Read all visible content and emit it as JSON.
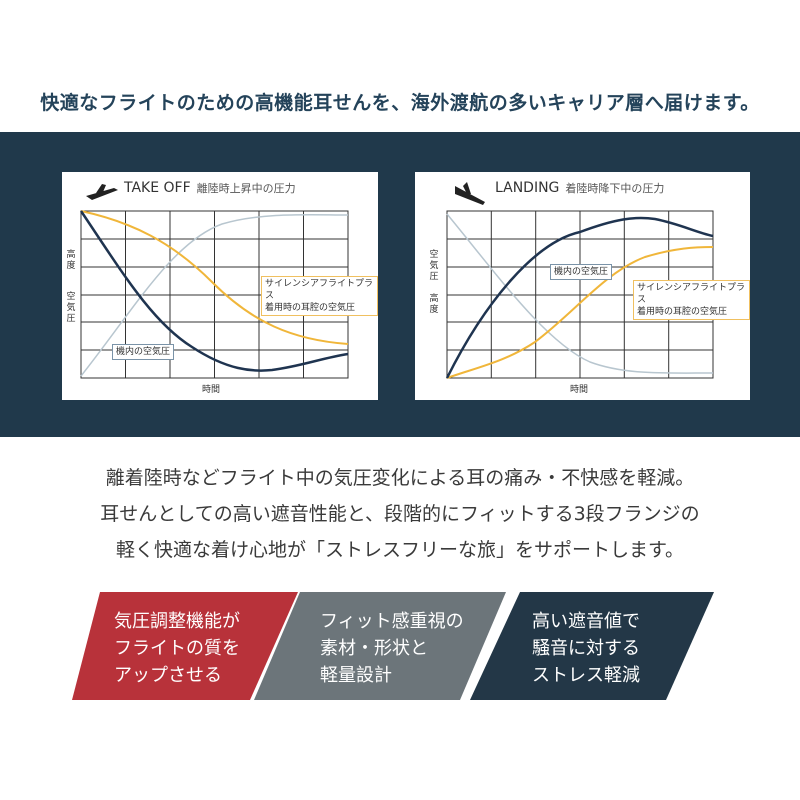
{
  "headline": "快適なフライトのための高機能耳せんを、海外渡航の多いキャリア層へ届けます。",
  "takeoff": {
    "title_en": "TAKE OFF",
    "title_jp": "離陸時上昇中の圧力",
    "y_label_top": "高度",
    "y_label_bottom": "空気圧",
    "x_label": "時間",
    "label_cabin": "機内の空気圧",
    "label_ear": [
      "サイレンシアフライトプラス",
      "着用時の耳腔の空気圧"
    ],
    "icon": "airplane-takeoff-icon"
  },
  "landing": {
    "title_en": "LANDING",
    "title_jp": "着陸時降下中の圧力",
    "y_label_top": "空気圧",
    "y_label_bottom": "高度",
    "x_label": "時間",
    "label_cabin": "機内の空気圧",
    "label_ear": [
      "サイレンシアフライトプラス",
      "着用時の耳腔の空気圧"
    ],
    "icon": "airplane-landing-icon"
  },
  "colors": {
    "band": "#20394b",
    "cabin_line": "#1f3450",
    "ear_line": "#f0b63a",
    "altitude_line": "#b8c6cf",
    "feature_red": "#b8323a",
    "feature_gray": "#6c757a",
    "feature_navy": "#233747"
  },
  "body": [
    "離着陸時などフライト中の気圧変化による耳の痛み・不快感を軽減。",
    "耳せんとしての高い遮音性能と、段階的にフィットする3段フランジの",
    "軽く快適な着け心地が「ストレスフリーな旅」をサポートします。"
  ],
  "features": [
    {
      "lines": [
        "気圧調整機能が",
        "フライトの質を",
        "アップさせる"
      ]
    },
    {
      "lines": [
        "フィット感重視の",
        "素材・形状と",
        "軽量設計"
      ]
    },
    {
      "lines": [
        "高い遮音値で",
        "騒音に対する",
        "ストレス軽減"
      ]
    }
  ]
}
